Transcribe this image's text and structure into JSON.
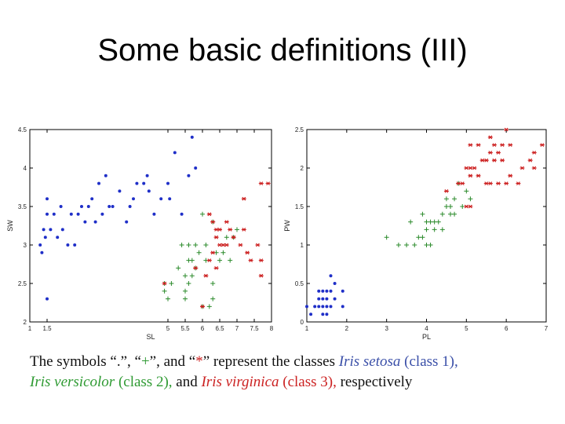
{
  "title": "Some basic definitions (III)",
  "caption": {
    "line1_a": "The symbols “.”, “",
    "line1_plus": "+",
    "line1_b": "”, and “",
    "line1_star": "*",
    "line1_c": "” represent the classes ",
    "setosa_name": "Iris setosa",
    "setosa_class": " (class 1),",
    "versicolor_name": "Iris versicolor",
    "versicolor_class": " (class 2),",
    "line2_and": " and ",
    "virginica_name": "Iris virginica",
    "virginica_class": " (class 3),",
    "line2_end": " respectively"
  },
  "colors": {
    "setosa": "#1f2fc8",
    "versicolor": "#2a8a2a",
    "virginica": "#cc1f1f"
  },
  "chart_data": [
    {
      "type": "scatter",
      "xlabel": "SL",
      "ylabel": "SW",
      "xlim": [
        1,
        8
      ],
      "ylim": [
        2,
        4.5
      ],
      "xticks": [
        1,
        1.5,
        5,
        5.5,
        6,
        6.5,
        7,
        7.5,
        8
      ],
      "xtick_labels": [
        "1",
        "1.5",
        "5",
        "5.5",
        "6",
        "6.5",
        "7",
        "7.5",
        "8"
      ],
      "yticks": [
        2,
        2.5,
        3,
        3.5,
        4,
        4.5
      ],
      "ytick_labels": [
        "2",
        "2.5",
        "3",
        "3.5",
        "4",
        "4.5"
      ],
      "series": [
        {
          "class": "setosa",
          "marker": "dot",
          "points": [
            [
              1.3,
              3
            ],
            [
              1.35,
              2.9
            ],
            [
              1.5,
              2.3
            ],
            [
              1.4,
              3.2
            ],
            [
              1.45,
              3.1
            ],
            [
              1.5,
              3.4
            ],
            [
              1.5,
              3.6
            ],
            [
              1.6,
              3.2
            ],
            [
              1.7,
              3.4
            ],
            [
              1.8,
              3.1
            ],
            [
              1.9,
              3.5
            ],
            [
              1.95,
              3.2
            ],
            [
              2.1,
              3.0
            ],
            [
              2.2,
              3.4
            ],
            [
              2.3,
              3.0
            ],
            [
              2.4,
              3.4
            ],
            [
              2.5,
              3.5
            ],
            [
              2.6,
              3.3
            ],
            [
              2.7,
              3.5
            ],
            [
              2.8,
              3.6
            ],
            [
              2.9,
              3.3
            ],
            [
              3.0,
              3.8
            ],
            [
              3.1,
              3.4
            ],
            [
              3.2,
              3.9
            ],
            [
              3.3,
              3.5
            ],
            [
              3.4,
              3.5
            ],
            [
              3.6,
              3.7
            ],
            [
              3.8,
              3.3
            ],
            [
              3.9,
              3.5
            ],
            [
              4.0,
              3.6
            ],
            [
              4.1,
              3.8
            ],
            [
              4.3,
              3.8
            ],
            [
              4.4,
              3.9
            ],
            [
              4.45,
              3.7
            ],
            [
              4.6,
              3.4
            ],
            [
              4.8,
              3.6
            ],
            [
              5.0,
              3.8
            ],
            [
              5.05,
              3.6
            ],
            [
              5.2,
              4.2
            ],
            [
              5.4,
              3.4
            ],
            [
              5.6,
              3.9
            ],
            [
              5.7,
              4.4
            ],
            [
              5.8,
              4.0
            ]
          ]
        },
        {
          "class": "versicolor",
          "marker": "plus",
          "points": [
            [
              4.9,
              2.4
            ],
            [
              4.9,
              2.5
            ],
            [
              5.0,
              2.3
            ],
            [
              5.1,
              2.5
            ],
            [
              5.3,
              2.7
            ],
            [
              5.4,
              3.0
            ],
            [
              5.5,
              2.3
            ],
            [
              5.5,
              2.4
            ],
            [
              5.5,
              2.6
            ],
            [
              5.6,
              2.8
            ],
            [
              5.6,
              3.0
            ],
            [
              5.6,
              2.5
            ],
            [
              5.7,
              2.6
            ],
            [
              5.7,
              2.8
            ],
            [
              5.8,
              2.7
            ],
            [
              5.8,
              3.0
            ],
            [
              5.9,
              2.9
            ],
            [
              6.0,
              3.4
            ],
            [
              6.0,
              2.2
            ],
            [
              6.1,
              2.8
            ],
            [
              6.1,
              3.0
            ],
            [
              6.2,
              2.2
            ],
            [
              6.3,
              2.3
            ],
            [
              6.3,
              2.5
            ],
            [
              6.3,
              3.3
            ],
            [
              6.4,
              2.9
            ],
            [
              6.5,
              2.8
            ],
            [
              6.6,
              2.9
            ],
            [
              6.7,
              3.1
            ],
            [
              6.8,
              2.8
            ],
            [
              6.9,
              3.1
            ],
            [
              7.0,
              3.2
            ]
          ]
        },
        {
          "class": "virginica",
          "marker": "star",
          "points": [
            [
              4.9,
              2.5
            ],
            [
              5.8,
              2.7
            ],
            [
              6.0,
              2.2
            ],
            [
              6.1,
              2.6
            ],
            [
              6.2,
              2.8
            ],
            [
              6.2,
              3.4
            ],
            [
              6.3,
              2.9
            ],
            [
              6.3,
              3.3
            ],
            [
              6.4,
              2.7
            ],
            [
              6.4,
              3.1
            ],
            [
              6.4,
              3.2
            ],
            [
              6.5,
              3.0
            ],
            [
              6.5,
              3.2
            ],
            [
              6.6,
              3.0
            ],
            [
              6.7,
              3.0
            ],
            [
              6.7,
              3.3
            ],
            [
              6.8,
              3.2
            ],
            [
              6.9,
              3.1
            ],
            [
              7.1,
              3.0
            ],
            [
              7.2,
              3.2
            ],
            [
              7.2,
              3.6
            ],
            [
              7.3,
              2.9
            ],
            [
              7.4,
              2.8
            ],
            [
              7.6,
              3.0
            ],
            [
              7.7,
              2.6
            ],
            [
              7.7,
              2.8
            ],
            [
              7.7,
              3.8
            ],
            [
              7.9,
              3.8
            ]
          ]
        }
      ]
    },
    {
      "type": "scatter",
      "xlabel": "PL",
      "ylabel": "PW",
      "xlim": [
        1,
        7
      ],
      "ylim": [
        0,
        2.5
      ],
      "xticks": [
        1,
        2,
        3,
        4,
        5,
        6,
        7
      ],
      "xtick_labels": [
        "1",
        "2",
        "3",
        "4",
        "5",
        "6",
        "7"
      ],
      "yticks": [
        0,
        0.5,
        1,
        1.5,
        2,
        2.5
      ],
      "ytick_labels": [
        "0",
        "0.5",
        "1",
        "1.5",
        "2",
        "2.5"
      ],
      "series": [
        {
          "class": "setosa",
          "marker": "dot",
          "points": [
            [
              1.0,
              0.2
            ],
            [
              1.1,
              0.1
            ],
            [
              1.2,
              0.2
            ],
            [
              1.3,
              0.2
            ],
            [
              1.3,
              0.3
            ],
            [
              1.3,
              0.4
            ],
            [
              1.4,
              0.1
            ],
            [
              1.4,
              0.2
            ],
            [
              1.4,
              0.3
            ],
            [
              1.5,
              0.1
            ],
            [
              1.5,
              0.2
            ],
            [
              1.5,
              0.4
            ],
            [
              1.6,
              0.2
            ],
            [
              1.6,
              0.4
            ],
            [
              1.6,
              0.6
            ],
            [
              1.7,
              0.3
            ],
            [
              1.7,
              0.5
            ],
            [
              1.9,
              0.2
            ],
            [
              1.9,
              0.4
            ],
            [
              1.5,
              0.3
            ],
            [
              1.4,
              0.4
            ]
          ]
        },
        {
          "class": "versicolor",
          "marker": "plus",
          "points": [
            [
              3.0,
              1.1
            ],
            [
              3.3,
              1.0
            ],
            [
              3.5,
              1.0
            ],
            [
              3.6,
              1.3
            ],
            [
              3.7,
              1.0
            ],
            [
              3.8,
              1.1
            ],
            [
              3.9,
              1.1
            ],
            [
              3.9,
              1.4
            ],
            [
              4.0,
              1.0
            ],
            [
              4.0,
              1.2
            ],
            [
              4.0,
              1.3
            ],
            [
              4.1,
              1.0
            ],
            [
              4.1,
              1.3
            ],
            [
              4.2,
              1.2
            ],
            [
              4.2,
              1.3
            ],
            [
              4.3,
              1.3
            ],
            [
              4.4,
              1.2
            ],
            [
              4.4,
              1.4
            ],
            [
              4.5,
              1.5
            ],
            [
              4.5,
              1.6
            ],
            [
              4.6,
              1.4
            ],
            [
              4.6,
              1.5
            ],
            [
              4.7,
              1.4
            ],
            [
              4.7,
              1.6
            ],
            [
              4.8,
              1.8
            ],
            [
              4.9,
              1.5
            ],
            [
              5.0,
              1.7
            ],
            [
              5.1,
              1.6
            ]
          ]
        },
        {
          "class": "virginica",
          "marker": "star",
          "points": [
            [
              4.5,
              1.7
            ],
            [
              4.8,
              1.8
            ],
            [
              4.9,
              1.8
            ],
            [
              5.0,
              1.5
            ],
            [
              5.0,
              2.0
            ],
            [
              5.1,
              1.5
            ],
            [
              5.1,
              1.9
            ],
            [
              5.1,
              2.0
            ],
            [
              5.1,
              2.3
            ],
            [
              5.2,
              2.0
            ],
            [
              5.3,
              1.9
            ],
            [
              5.3,
              2.3
            ],
            [
              5.4,
              2.1
            ],
            [
              5.5,
              1.8
            ],
            [
              5.5,
              2.1
            ],
            [
              5.6,
              1.8
            ],
            [
              5.6,
              2.2
            ],
            [
              5.6,
              2.4
            ],
            [
              5.7,
              2.1
            ],
            [
              5.7,
              2.3
            ],
            [
              5.8,
              1.8
            ],
            [
              5.8,
              2.2
            ],
            [
              5.9,
              2.1
            ],
            [
              5.9,
              2.3
            ],
            [
              6.0,
              1.8
            ],
            [
              6.0,
              2.5
            ],
            [
              6.1,
              1.9
            ],
            [
              6.1,
              2.3
            ],
            [
              6.3,
              1.8
            ],
            [
              6.4,
              2.0
            ],
            [
              6.6,
              2.1
            ],
            [
              6.7,
              2.0
            ],
            [
              6.7,
              2.2
            ],
            [
              6.9,
              2.3
            ]
          ]
        }
      ]
    }
  ]
}
